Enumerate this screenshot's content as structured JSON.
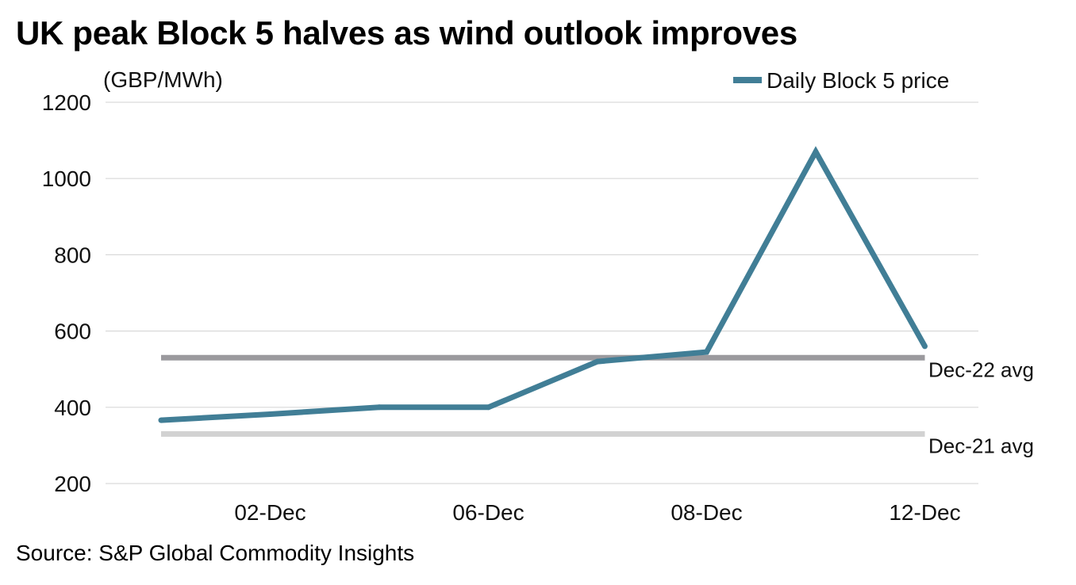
{
  "chart_data": {
    "type": "line",
    "title": "UK peak Block 5 halves as wind outlook improves",
    "ylabel": "(GBP/MWh)",
    "xlabel": "",
    "ylim": [
      200,
      1200
    ],
    "yticks": [
      200,
      400,
      600,
      800,
      1000,
      1200
    ],
    "x": [
      "",
      "02-Dec",
      "",
      "06-Dec",
      "",
      "08-Dec",
      "",
      "12-Dec"
    ],
    "series": [
      {
        "name": "Daily Block 5 price",
        "color": "#417e96",
        "values": [
          366,
          382,
          400,
          400,
          520,
          545,
          1070,
          560
        ]
      }
    ],
    "reference_lines": [
      {
        "label": "Dec-22 avg",
        "value": 530,
        "color": "#9b9a9e"
      },
      {
        "label": "Dec-21 avg",
        "value": 330,
        "color": "#d2d2d2"
      }
    ],
    "legend": "top-right",
    "grid": true
  },
  "source": "Source: S&P Global Commodity Insights"
}
